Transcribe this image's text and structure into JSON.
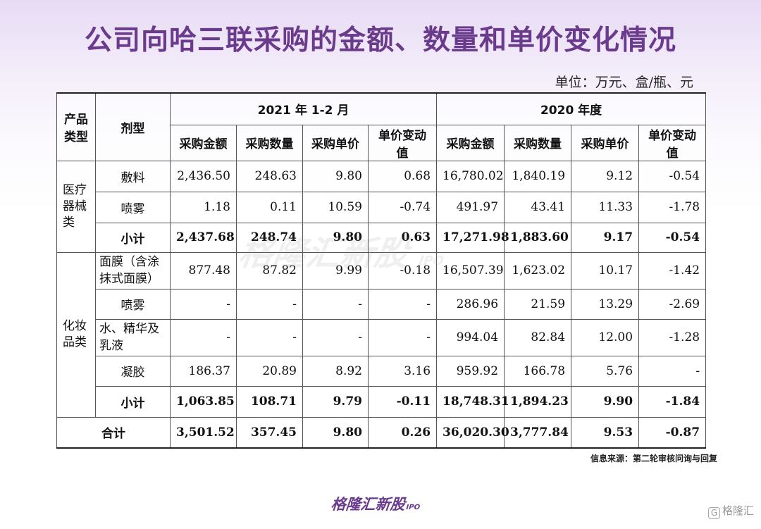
{
  "title": "公司向哈三联采购的金额、数量和单价变化情况",
  "unit": "单位：万元、盒/瓶、元",
  "header": {
    "product_type": "产品类型",
    "form": "剂型",
    "period1": "2021 年 1-2 月",
    "period2": "2020 年度",
    "amount": "采购金额",
    "quantity": "采购数量",
    "price": "采购单价",
    "change": "单价变动值"
  },
  "rows": {
    "med_cat": "医疗器械类",
    "med": [
      {
        "form": "敷料",
        "v": [
          "2,436.50",
          "248.63",
          "9.80",
          "0.68",
          "16,780.02",
          "1,840.19",
          "9.12",
          "-0.54"
        ]
      },
      {
        "form": "喷雾",
        "v": [
          "1.18",
          "0.11",
          "10.59",
          "-0.74",
          "491.97",
          "43.41",
          "11.33",
          "-1.78"
        ]
      },
      {
        "form": "小计",
        "v": [
          "2,437.68",
          "248.74",
          "9.80",
          "0.63",
          "17,271.98",
          "1,883.60",
          "9.17",
          "-0.54"
        ]
      }
    ],
    "cos_cat": "化妆品类",
    "cos": [
      {
        "form": "面膜（含涂抹式面膜）",
        "v": [
          "877.48",
          "87.82",
          "9.99",
          "-0.18",
          "16,507.39",
          "1,623.02",
          "10.17",
          "-1.42"
        ]
      },
      {
        "form": "喷雾",
        "v": [
          "-",
          "-",
          "-",
          "-",
          "286.96",
          "21.59",
          "13.29",
          "-2.69"
        ]
      },
      {
        "form": "水、精华及乳液",
        "v": [
          "-",
          "-",
          "-",
          "-",
          "994.04",
          "82.84",
          "12.00",
          "-1.28"
        ]
      },
      {
        "form": "凝胶",
        "v": [
          "186.37",
          "20.89",
          "8.92",
          "3.16",
          "959.92",
          "166.78",
          "5.76",
          "-"
        ]
      },
      {
        "form": "小计",
        "v": [
          "1,063.85",
          "108.71",
          "9.79",
          "-0.11",
          "18,748.31",
          "1,894.23",
          "9.90",
          "-1.84"
        ]
      }
    ],
    "total": {
      "form": "合计",
      "v": [
        "3,501.52",
        "357.45",
        "9.80",
        "0.26",
        "36,020.30",
        "3,777.84",
        "9.53",
        "-0.87"
      ]
    }
  },
  "watermark": "格隆汇新股",
  "watermark_suffix": "IPO",
  "source": "信息来源：第二轮审核问询与回复",
  "logo": {
    "text": "格隆汇新股",
    "suffix": "IPO"
  },
  "corner_brand": "格隆汇",
  "corner_icon": "G",
  "colors": {
    "title": "#6a3a8c",
    "border": "#555555"
  }
}
